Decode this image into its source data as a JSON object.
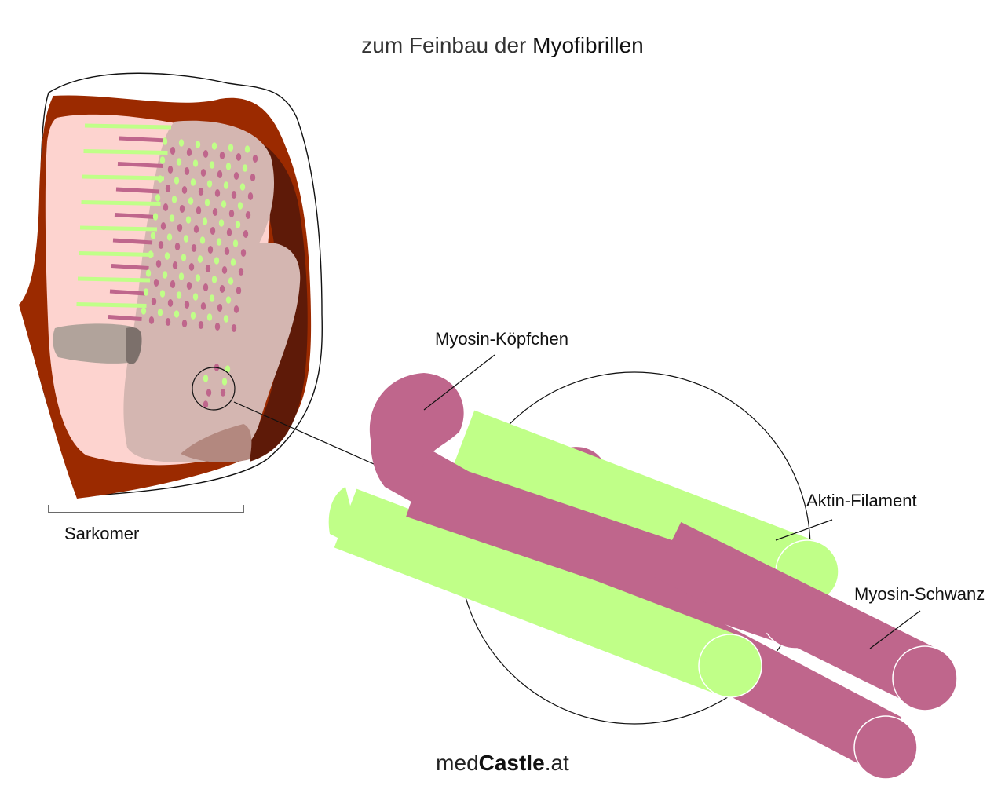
{
  "title": {
    "prefix": "zum Feinbau der ",
    "emphasis": "Myofibrillen"
  },
  "labels": {
    "sarkomer": "Sarkomer",
    "myosin_koepfchen": "Myosin-Köpfchen",
    "aktin_filament": "Aktin-Filament",
    "myosin_schwanz": "Myosin-Schwanz"
  },
  "footer": {
    "prefix": "med",
    "bold": "Castle",
    "suffix": ".at"
  },
  "colors": {
    "muscle_dark": "#9b2a00",
    "muscle_deep": "#5e1a08",
    "fiber_light": "#fdd3cf",
    "fiber_cross": "#d4b6b1",
    "actin": "#c0ff88",
    "myosin": "#bf668c",
    "nucleus": "#b1a39b",
    "nucleus_dark": "#7c706b",
    "mito": "#b3887f"
  }
}
